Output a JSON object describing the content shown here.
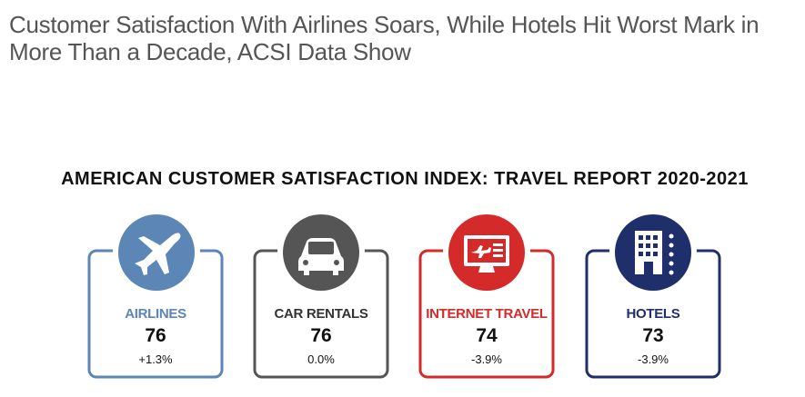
{
  "headline": "Customer Satisfaction With Airlines Soars, While Hotels Hit Worst Mark in More Than a Decade, ACSI Data Show",
  "report_title": "AMERICAN CUSTOMER SATISFACTION INDEX: TRAVEL REPORT 2020-2021",
  "cards": [
    {
      "label": "AIRLINES",
      "score": "76",
      "change": "+1.3%"
    },
    {
      "label": "CAR RENTALS",
      "score": "76",
      "change": "0.0%"
    },
    {
      "label": "INTERNET TRAVEL",
      "score": "74",
      "change": "-3.9%"
    },
    {
      "label": "HOTELS",
      "score": "73",
      "change": "-3.9%"
    }
  ]
}
